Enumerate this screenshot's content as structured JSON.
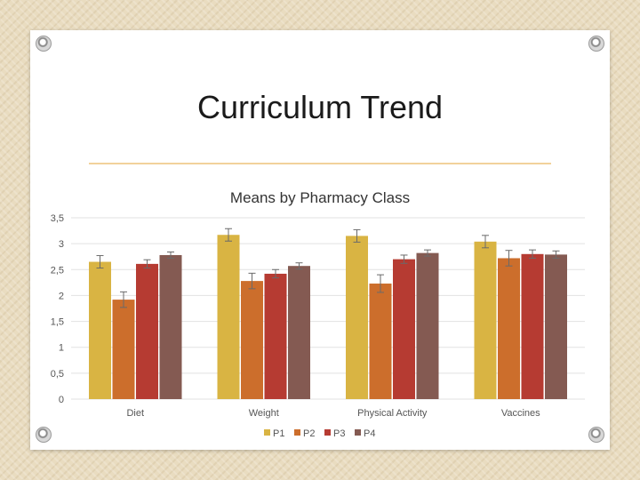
{
  "slide": {
    "title": "Curriculum Trend"
  },
  "chart_data": {
    "type": "bar",
    "title": "Means by Pharmacy Class",
    "categories": [
      "Diet",
      "Weight",
      "Physical Activity",
      "Vaccines"
    ],
    "series": [
      {
        "name": "P1",
        "color": "#d9b443",
        "values": [
          2.65,
          3.17,
          3.15,
          3.04
        ],
        "errors": [
          0.12,
          0.12,
          0.12,
          0.12
        ]
      },
      {
        "name": "P2",
        "color": "#cc6e2c",
        "values": [
          1.92,
          2.28,
          2.23,
          2.72
        ],
        "errors": [
          0.15,
          0.15,
          0.17,
          0.15
        ]
      },
      {
        "name": "P3",
        "color": "#b63b32",
        "values": [
          2.61,
          2.42,
          2.7,
          2.8
        ],
        "errors": [
          0.08,
          0.08,
          0.08,
          0.08
        ]
      },
      {
        "name": "P4",
        "color": "#845a52",
        "values": [
          2.78,
          2.57,
          2.82,
          2.79
        ],
        "errors": [
          0.06,
          0.06,
          0.06,
          0.07
        ]
      }
    ],
    "ylim": [
      0,
      3.5
    ],
    "yticks": [
      "0",
      "0,5",
      "1",
      "1,5",
      "2",
      "2,5",
      "3",
      "3,5"
    ],
    "legend": "bottom",
    "grid": true,
    "xlabel": "",
    "ylabel": ""
  }
}
